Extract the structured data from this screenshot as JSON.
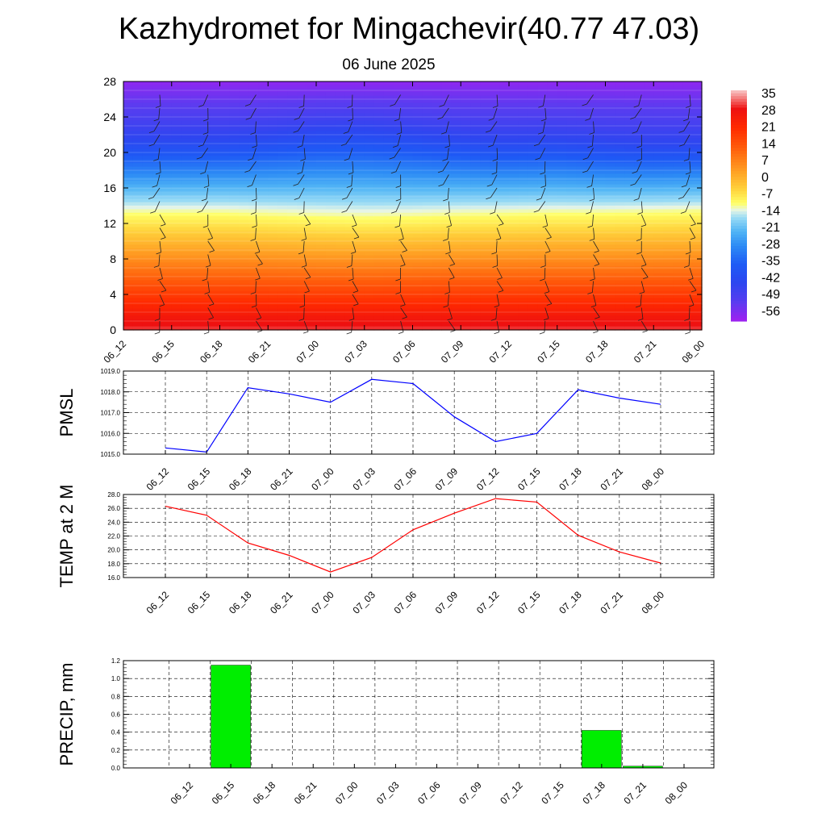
{
  "title": "Kazhydromet for Mingachevir(40.77 47.03)",
  "subtitle": "06 June 2025",
  "time_labels": [
    "06_12",
    "06_15",
    "06_18",
    "06_21",
    "07_00",
    "07_03",
    "07_06",
    "07_09",
    "07_12",
    "07_15",
    "07_18",
    "07_21",
    "08_00"
  ],
  "chart_data": [
    {
      "type": "heatmap",
      "title": "Kazhydromet for Mingachevir(40.77 47.03)",
      "subtitle": "06 June 2025",
      "x": [
        "06_12",
        "06_15",
        "06_18",
        "06_21",
        "07_00",
        "07_03",
        "07_06",
        "07_09",
        "07_12",
        "07_15",
        "07_18",
        "07_21",
        "08_00"
      ],
      "ylim": [
        0,
        28
      ],
      "yticks": [
        0,
        4,
        8,
        12,
        16,
        20,
        24,
        28
      ],
      "colorbar_labels": [
        "35",
        "28",
        "21",
        "14",
        "7",
        "0",
        "-7",
        "-14",
        "-21",
        "-28",
        "-35",
        "-42",
        "-49",
        "-56"
      ],
      "colorbar_values": [
        35,
        28,
        21,
        14,
        7,
        0,
        -7,
        -14,
        -21,
        -28,
        -35,
        -42,
        -49,
        -56
      ],
      "level_boundaries": {
        "freezing_level": [
          13.0,
          13.0,
          13.0,
          12.8,
          12.6,
          12.5,
          12.6,
          12.8,
          12.9,
          13.0,
          13.0,
          13.1,
          13.2
        ],
        "dark_blue_core": [
          21.5,
          21.6,
          21.6,
          22.0,
          22.5,
          22.6,
          22.2,
          21.7,
          21.4,
          21.5,
          21.2,
          21.0,
          21.0
        ]
      },
      "wind_barbs": true
    },
    {
      "type": "line",
      "ylabel": "PMSL",
      "ylim": [
        1015.0,
        1019.0
      ],
      "yticks": [
        "1015.0",
        "1016.0",
        "1017.0",
        "1018.0",
        "1019.0"
      ],
      "categories": [
        "06_12",
        "06_15",
        "06_18",
        "06_21",
        "07_00",
        "07_03",
        "07_06",
        "07_09",
        "07_12",
        "07_15",
        "07_18",
        "07_21",
        "08_00"
      ],
      "values": [
        1015.3,
        1015.1,
        1018.2,
        1017.9,
        1017.5,
        1018.6,
        1018.4,
        1016.8,
        1015.6,
        1016.0,
        1018.1,
        1017.7,
        1017.4
      ],
      "color": "#0000ff",
      "grid": true
    },
    {
      "type": "line",
      "ylabel": "TEMP at 2 M",
      "ylim": [
        16.0,
        28.0
      ],
      "yticks": [
        "16.0",
        "18.0",
        "20.0",
        "22.0",
        "24.0",
        "26.0",
        "28.0"
      ],
      "categories": [
        "06_12",
        "06_15",
        "06_18",
        "06_21",
        "07_00",
        "07_03",
        "07_06",
        "07_09",
        "07_12",
        "07_15",
        "07_18",
        "07_21",
        "08_00"
      ],
      "values": [
        26.3,
        25.0,
        21.0,
        19.2,
        16.8,
        18.9,
        22.9,
        25.3,
        27.4,
        26.9,
        22.1,
        19.7,
        18.1
      ],
      "color": "#ff0000",
      "grid": true
    },
    {
      "type": "bar",
      "ylabel": "PRECIP, mm",
      "ylim": [
        0.0,
        1.2
      ],
      "yticks": [
        "0.0",
        "0.2",
        "0.4",
        "0.6",
        "0.8",
        "1.0",
        "1.2"
      ],
      "categories": [
        "06_12",
        "06_15",
        "06_18",
        "06_21",
        "07_00",
        "07_03",
        "07_06",
        "07_09",
        "07_12",
        "07_15",
        "07_18",
        "07_21",
        "08_00"
      ],
      "values": [
        0,
        1.15,
        0,
        0,
        0,
        0,
        0,
        0,
        0,
        0,
        0.42,
        0.02,
        0
      ],
      "color": "#00ee00",
      "grid": true
    }
  ]
}
